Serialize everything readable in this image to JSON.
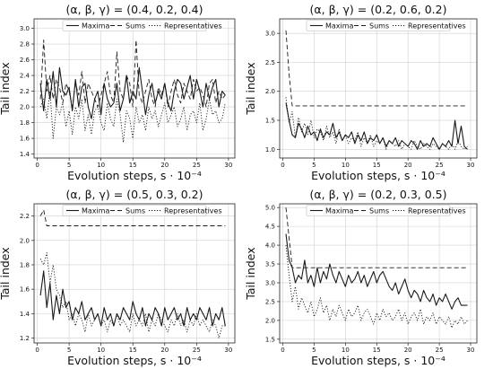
{
  "chart_data": [
    {
      "type": "line",
      "title": "(α, β, γ) = (0.4, 0.2, 0.4)",
      "xlabel": "Evolution steps, s · 10⁻⁴",
      "ylabel": "Tail index",
      "xlim": [
        -0.5,
        31
      ],
      "ylim": [
        1.35,
        3.12
      ],
      "xticks": [
        "0",
        "5",
        "10",
        "15",
        "20",
        "25",
        "30"
      ],
      "yticks": [
        "1.4",
        "1.6",
        "1.8",
        "2.0",
        "2.2",
        "2.4",
        "2.6",
        "2.8",
        "3.0"
      ],
      "grid": true,
      "legend_position": "top",
      "series": [
        {
          "name": "Maxima",
          "style": "solid",
          "x_start": 0.5,
          "x_step": 0.5,
          "values": [
            2.3,
            1.95,
            2.35,
            2.1,
            2.45,
            2.0,
            2.5,
            2.2,
            2.15,
            2.25,
            1.95,
            2.35,
            2.0,
            2.25,
            2.3,
            2.0,
            1.85,
            2.1,
            2.2,
            1.9,
            2.3,
            2.1,
            2.0,
            2.05,
            2.3,
            1.95,
            2.1,
            2.4,
            2.05,
            2.2,
            2.1,
            2.5,
            2.2,
            1.9,
            2.15,
            2.3,
            2.05,
            2.2,
            2.1,
            2.3,
            2.05,
            1.95,
            2.2,
            2.35,
            2.3,
            2.1,
            2.25,
            2.4,
            2.1,
            2.35,
            2.2,
            2.0,
            2.3,
            2.1,
            2.25,
            2.35,
            2.0,
            2.2,
            2.15
          ]
        },
        {
          "name": "Sums",
          "style": "dashed",
          "x_start": 0.5,
          "x_step": 0.5,
          "values": [
            2.1,
            2.85,
            2.2,
            2.4,
            2.1,
            2.35,
            2.25,
            2.05,
            2.3,
            2.2,
            2.0,
            2.3,
            2.15,
            2.45,
            2.05,
            2.3,
            2.2,
            2.1,
            2.0,
            2.15,
            2.3,
            2.45,
            2.15,
            2.05,
            2.7,
            2.2,
            2.1,
            2.4,
            2.3,
            2.0,
            2.85,
            2.15,
            2.05,
            2.2,
            2.35,
            2.1,
            2.0,
            2.25,
            2.15,
            2.3,
            2.0,
            2.2,
            2.35,
            2.15,
            2.05,
            2.3,
            2.2,
            2.1,
            2.35,
            2.2,
            2.25,
            2.15,
            2.0,
            2.3,
            2.35,
            2.05,
            2.2,
            2.1,
            2.15
          ]
        },
        {
          "name": "Representatives",
          "style": "dotted",
          "x_start": 0.5,
          "x_step": 0.5,
          "values": [
            2.0,
            2.1,
            1.85,
            2.2,
            1.6,
            2.0,
            1.9,
            2.05,
            1.75,
            1.95,
            1.65,
            2.0,
            1.85,
            2.1,
            1.7,
            1.9,
            1.65,
            1.95,
            2.0,
            1.8,
            1.7,
            2.05,
            1.85,
            1.75,
            2.1,
            1.9,
            1.55,
            1.95,
            1.85,
            1.6,
            2.0,
            1.8,
            1.9,
            1.7,
            2.0,
            1.85,
            1.95,
            1.75,
            1.9,
            2.05,
            1.8,
            1.9,
            2.0,
            1.75,
            1.85,
            2.0,
            1.7,
            1.9,
            1.95,
            1.8,
            2.05,
            1.7,
            1.85,
            2.1,
            1.9,
            1.95,
            1.8,
            1.85,
            2.05
          ]
        }
      ]
    },
    {
      "type": "line",
      "title": "(α, β, γ) = (0.2, 0.6, 0.2)",
      "xlabel": "Evolution steps, s · 10⁻⁴",
      "ylabel": "Tail index",
      "xlim": [
        -0.5,
        31
      ],
      "ylim": [
        0.85,
        3.25
      ],
      "xticks": [
        "0",
        "5",
        "10",
        "15",
        "20",
        "25",
        "30"
      ],
      "yticks": [
        "1.0",
        "1.5",
        "2.0",
        "2.5",
        "3.0"
      ],
      "grid": true,
      "legend_position": "top",
      "series": [
        {
          "name": "Maxima",
          "style": "solid",
          "x_start": 0.5,
          "x_step": 0.5,
          "values": [
            1.8,
            1.5,
            1.25,
            1.2,
            1.45,
            1.35,
            1.2,
            1.4,
            1.25,
            1.3,
            1.15,
            1.35,
            1.2,
            1.3,
            1.25,
            1.45,
            1.2,
            1.3,
            1.15,
            1.25,
            1.2,
            1.3,
            1.1,
            1.25,
            1.15,
            1.3,
            1.1,
            1.2,
            1.15,
            1.25,
            1.1,
            1.2,
            1.05,
            1.15,
            1.1,
            1.2,
            1.05,
            1.15,
            1.1,
            1.05,
            1.15,
            1.1,
            1.0,
            1.15,
            1.05,
            1.1,
            1.05,
            1.2,
            1.1,
            1.0,
            1.1,
            1.05,
            1.15,
            1.05,
            1.5,
            1.1,
            1.4,
            1.05,
            1.0
          ]
        },
        {
          "name": "Sums",
          "style": "dashed",
          "x_start": 0.5,
          "x_step": 0.5,
          "values": [
            3.05,
            2.3,
            1.75,
            1.75,
            1.75,
            1.75,
            1.75,
            1.75,
            1.75,
            1.75,
            1.75,
            1.75,
            1.75,
            1.75,
            1.75,
            1.75,
            1.75,
            1.75,
            1.75,
            1.75,
            1.75,
            1.75,
            1.75,
            1.75,
            1.75,
            1.75,
            1.75,
            1.75,
            1.75,
            1.75,
            1.75,
            1.75,
            1.75,
            1.75,
            1.75,
            1.75,
            1.75,
            1.75,
            1.75,
            1.75,
            1.75,
            1.75,
            1.75,
            1.75,
            1.75,
            1.75,
            1.75,
            1.75,
            1.75,
            1.75,
            1.75,
            1.75,
            1.75,
            1.75,
            1.75,
            1.75,
            1.75,
            1.75,
            1.75
          ]
        },
        {
          "name": "Representatives",
          "style": "dotted",
          "x_start": 0.5,
          "x_step": 0.5,
          "values": [
            1.9,
            1.45,
            1.65,
            1.2,
            1.55,
            1.3,
            1.45,
            1.25,
            1.5,
            1.2,
            1.35,
            1.3,
            1.15,
            1.4,
            1.2,
            1.3,
            1.1,
            1.35,
            1.15,
            1.25,
            1.1,
            1.2,
            1.15,
            1.3,
            1.05,
            1.2,
            1.1,
            1.25,
            1.05,
            1.15,
            1.1,
            1.2,
            1.0,
            1.15,
            1.1,
            1.05,
            1.15,
            1.0,
            1.1,
            1.05,
            1.0,
            1.15,
            1.05,
            1.0,
            1.1,
            1.05,
            1.0,
            1.1,
            1.05,
            1.0,
            1.1,
            1.05,
            1.0,
            1.1,
            1.0,
            1.15,
            1.05,
            1.0,
            1.05
          ]
        }
      ]
    },
    {
      "type": "line",
      "title": "(α, β, γ) = (0.5, 0.3, 0.2)",
      "xlabel": "Evolution steps, s · 10⁻⁴",
      "ylabel": "Tail index",
      "xlim": [
        -0.5,
        31
      ],
      "ylim": [
        1.16,
        2.3
      ],
      "xticks": [
        "0",
        "5",
        "10",
        "15",
        "20",
        "25",
        "30"
      ],
      "yticks": [
        "1.2",
        "1.4",
        "1.6",
        "1.8",
        "2.0",
        "2.2"
      ],
      "grid": true,
      "legend_position": "top",
      "series": [
        {
          "name": "Maxima",
          "style": "solid",
          "x_start": 0.5,
          "x_step": 0.5,
          "values": [
            1.55,
            1.75,
            1.45,
            1.65,
            1.35,
            1.55,
            1.4,
            1.6,
            1.45,
            1.5,
            1.35,
            1.45,
            1.4,
            1.5,
            1.35,
            1.4,
            1.45,
            1.35,
            1.4,
            1.3,
            1.45,
            1.35,
            1.4,
            1.3,
            1.4,
            1.35,
            1.45,
            1.4,
            1.35,
            1.5,
            1.4,
            1.35,
            1.45,
            1.3,
            1.4,
            1.35,
            1.45,
            1.4,
            1.3,
            1.45,
            1.35,
            1.4,
            1.45,
            1.35,
            1.4,
            1.3,
            1.45,
            1.35,
            1.4,
            1.35,
            1.45,
            1.4,
            1.35,
            1.45,
            1.3,
            1.4,
            1.35,
            1.45,
            1.3
          ]
        },
        {
          "name": "Sums",
          "style": "dashed",
          "x_start": 0.5,
          "x_step": 0.5,
          "values": [
            2.2,
            2.25,
            2.12,
            2.12,
            2.12,
            2.12,
            2.12,
            2.12,
            2.12,
            2.12,
            2.12,
            2.12,
            2.12,
            2.12,
            2.12,
            2.12,
            2.12,
            2.12,
            2.12,
            2.12,
            2.12,
            2.12,
            2.12,
            2.12,
            2.12,
            2.12,
            2.12,
            2.12,
            2.12,
            2.12,
            2.12,
            2.12,
            2.12,
            2.12,
            2.12,
            2.12,
            2.12,
            2.12,
            2.12,
            2.12,
            2.12,
            2.12,
            2.12,
            2.12,
            2.12,
            2.12,
            2.12,
            2.12,
            2.12,
            2.12,
            2.12,
            2.12,
            2.12,
            2.12,
            2.12,
            2.12,
            2.12,
            2.12,
            2.12
          ]
        },
        {
          "name": "Representatives",
          "style": "dotted",
          "x_start": 0.5,
          "x_step": 0.5,
          "values": [
            1.85,
            1.8,
            1.9,
            1.65,
            1.8,
            1.6,
            1.55,
            1.45,
            1.5,
            1.35,
            1.4,
            1.3,
            1.4,
            1.35,
            1.25,
            1.4,
            1.3,
            1.35,
            1.4,
            1.3,
            1.35,
            1.25,
            1.35,
            1.3,
            1.4,
            1.3,
            1.35,
            1.3,
            1.25,
            1.4,
            1.3,
            1.35,
            1.3,
            1.4,
            1.25,
            1.35,
            1.3,
            1.4,
            1.35,
            1.3,
            1.25,
            1.35,
            1.3,
            1.4,
            1.3,
            1.35,
            1.25,
            1.35,
            1.3,
            1.4,
            1.3,
            1.35,
            1.3,
            1.25,
            1.35,
            1.3,
            1.2,
            1.3,
            1.3
          ]
        }
      ]
    },
    {
      "type": "line",
      "title": "(α, β, γ) = (0.2, 0.3, 0.5)",
      "xlabel": "Evolution steps, s · 10⁻⁴",
      "ylabel": "Tail index",
      "xlim": [
        -0.5,
        31
      ],
      "ylim": [
        1.4,
        5.1
      ],
      "xticks": [
        "0",
        "5",
        "10",
        "15",
        "20",
        "25",
        "30"
      ],
      "yticks": [
        "1.5",
        "2.0",
        "2.5",
        "3.0",
        "3.5",
        "4.0",
        "4.5",
        "5.0"
      ],
      "grid": true,
      "legend_position": "top",
      "series": [
        {
          "name": "Maxima",
          "style": "solid",
          "x_start": 0.5,
          "x_step": 0.5,
          "values": [
            4.3,
            3.6,
            3.4,
            3.0,
            3.2,
            3.1,
            3.6,
            3.0,
            3.2,
            2.9,
            3.4,
            3.0,
            3.3,
            3.1,
            3.5,
            3.2,
            3.0,
            3.3,
            3.1,
            2.9,
            3.2,
            3.0,
            3.1,
            3.3,
            3.0,
            3.2,
            2.9,
            3.1,
            3.3,
            3.0,
            3.2,
            3.3,
            3.1,
            2.9,
            2.8,
            3.0,
            2.7,
            2.9,
            3.1,
            2.8,
            2.6,
            2.8,
            2.7,
            2.5,
            2.8,
            2.6,
            2.5,
            2.7,
            2.4,
            2.6,
            2.5,
            2.7,
            2.5,
            2.3,
            2.5,
            2.6,
            2.4,
            2.4,
            2.4
          ]
        },
        {
          "name": "Sums",
          "style": "dashed",
          "x_start": 0.5,
          "x_step": 0.5,
          "values": [
            5.0,
            4.2,
            3.4,
            3.4,
            3.4,
            3.4,
            3.4,
            3.4,
            3.4,
            3.4,
            3.4,
            3.4,
            3.4,
            3.4,
            3.4,
            3.4,
            3.4,
            3.4,
            3.4,
            3.4,
            3.4,
            3.4,
            3.4,
            3.4,
            3.4,
            3.4,
            3.4,
            3.4,
            3.4,
            3.4,
            3.4,
            3.4,
            3.4,
            3.4,
            3.4,
            3.4,
            3.4,
            3.4,
            3.4,
            3.4,
            3.4,
            3.4,
            3.4,
            3.4,
            3.4,
            3.4,
            3.4,
            3.4,
            3.4,
            3.4,
            3.4,
            3.4,
            3.4,
            3.4,
            3.4,
            3.4,
            3.4,
            3.4,
            3.4
          ]
        },
        {
          "name": "Representatives",
          "style": "dotted",
          "x_start": 0.5,
          "x_step": 0.5,
          "values": [
            4.0,
            3.2,
            2.5,
            2.9,
            2.3,
            2.6,
            2.4,
            2.2,
            2.5,
            2.1,
            2.3,
            2.6,
            2.2,
            2.4,
            2.0,
            2.3,
            2.1,
            2.4,
            2.2,
            2.0,
            2.3,
            2.1,
            2.2,
            2.4,
            2.0,
            2.2,
            2.3,
            2.1,
            1.9,
            2.2,
            2.0,
            2.3,
            2.1,
            2.2,
            2.0,
            2.1,
            2.3,
            2.0,
            2.2,
            1.9,
            2.1,
            2.2,
            2.0,
            2.3,
            1.9,
            2.1,
            2.0,
            2.2,
            1.9,
            2.1,
            2.0,
            1.9,
            2.1,
            1.8,
            2.0,
            1.9,
            2.1,
            1.9,
            2.0
          ]
        }
      ]
    }
  ]
}
